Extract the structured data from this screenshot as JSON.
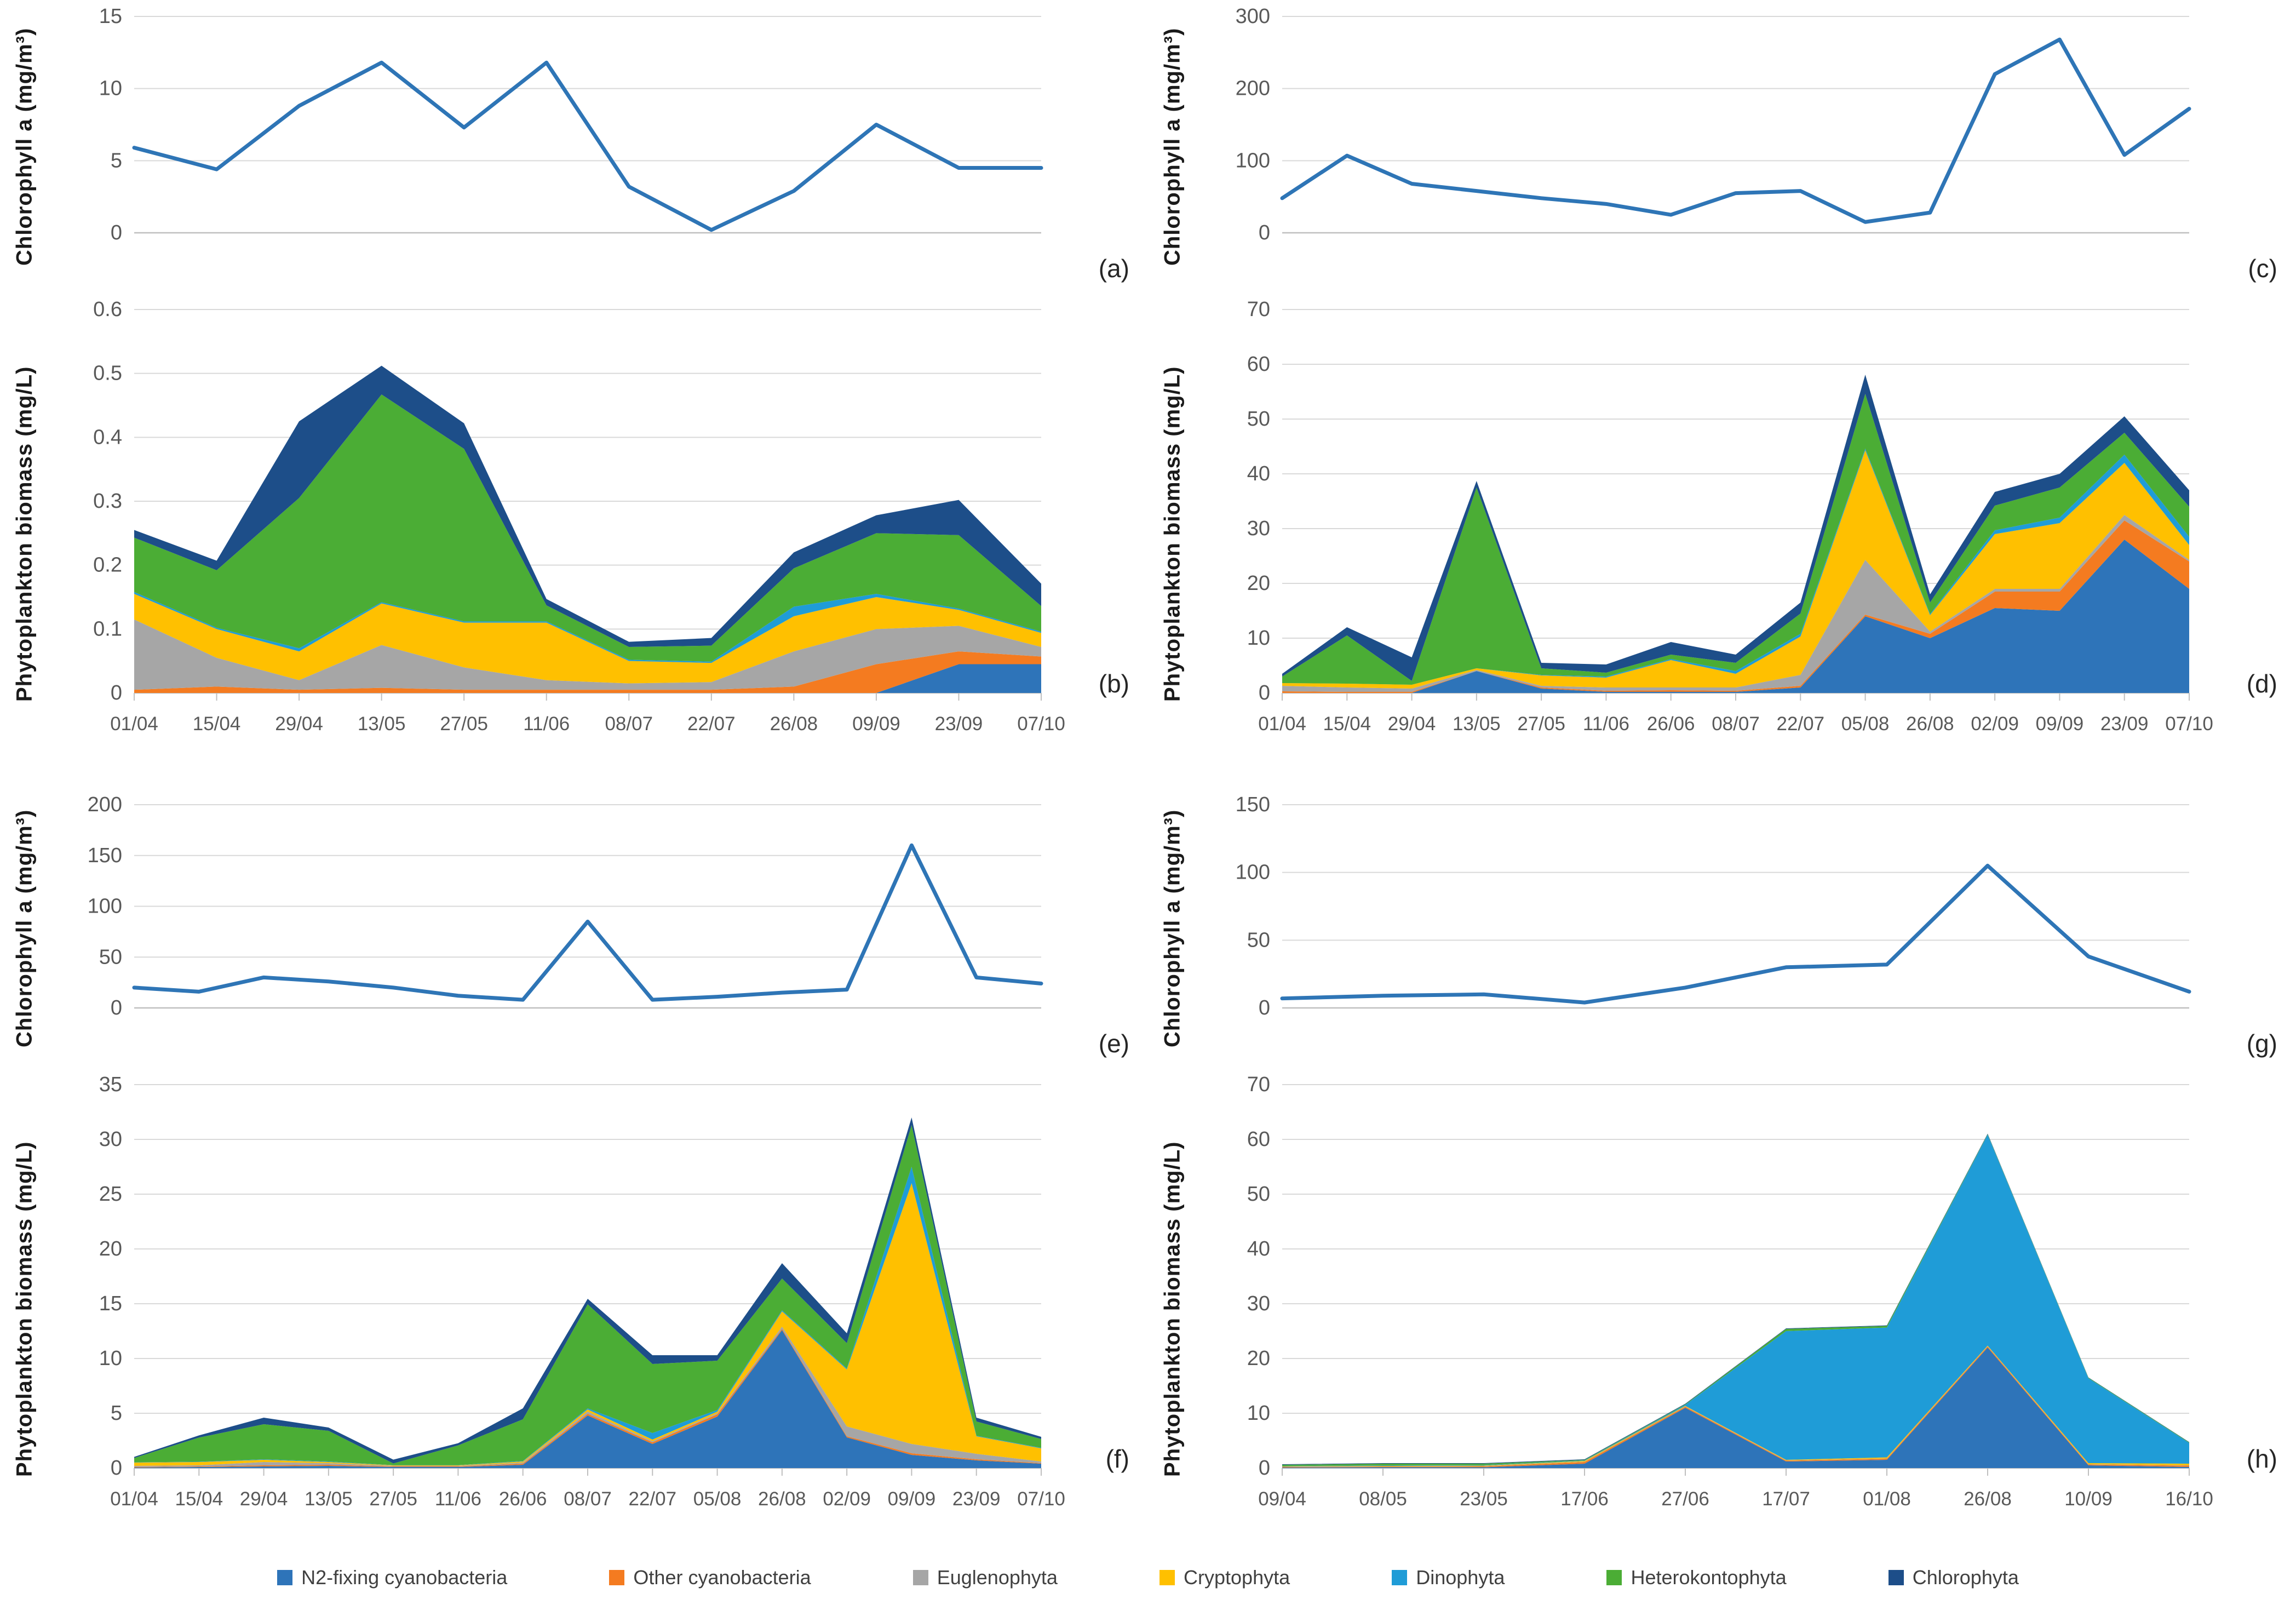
{
  "legend": {
    "items": [
      {
        "label": "N2-fixing cyanobacteria",
        "color": "#2E74B9"
      },
      {
        "label": "Other cyanobacteria",
        "color": "#F47B20"
      },
      {
        "label": "Euglenophyta",
        "color": "#A6A6A6"
      },
      {
        "label": "Cryptophyta",
        "color": "#FFC000"
      },
      {
        "label": "Dinophyta",
        "color": "#1F9CD7"
      },
      {
        "label": "Heterokontophyta",
        "color": "#4BAD35"
      },
      {
        "label": "Chlorophyta",
        "color": "#1D4E89"
      }
    ]
  },
  "chart_data": [
    {
      "letter": "(a)",
      "type": "line",
      "ylabel": "Chlorophyll a (mg/m³)",
      "ymax": 15,
      "yticks": [
        "0",
        "5",
        "10",
        "15"
      ],
      "show_x_labels": false,
      "line_color": "#2E75B6",
      "categories": [
        "01/04",
        "15/04",
        "29/04",
        "13/05",
        "27/05",
        "11/06",
        "08/07",
        "22/07",
        "26/08",
        "09/09",
        "23/09",
        "07/10"
      ],
      "values": [
        5.9,
        4.4,
        8.8,
        11.8,
        7.3,
        11.8,
        3.2,
        0.2,
        2.9,
        7.5,
        4.5,
        4.5
      ]
    },
    {
      "letter": "(c)",
      "type": "line",
      "ylabel": "Chlorophyll a (mg/m³)",
      "ymax": 300,
      "yticks": [
        "0",
        "100",
        "200",
        "300"
      ],
      "show_x_labels": false,
      "line_color": "#2E75B6",
      "categories": [
        "01/04",
        "15/04",
        "29/04",
        "13/05",
        "27/05",
        "11/06",
        "26/06",
        "08/07",
        "22/07",
        "05/08",
        "26/08",
        "02/09",
        "09/09",
        "23/09",
        "07/10"
      ],
      "values": [
        48,
        107,
        68,
        58,
        48,
        40,
        25,
        55,
        58,
        15,
        28,
        220,
        268,
        108,
        172
      ]
    },
    {
      "letter": "(b)",
      "type": "area",
      "ylabel": "Phytoplankton biomass (mg/L)",
      "ymax": 0.6,
      "yticks": [
        "0",
        "0.1",
        "0.2",
        "0.3",
        "0.4",
        "0.5",
        "0.6"
      ],
      "show_x_labels": true,
      "categories": [
        "01/04",
        "15/04",
        "29/04",
        "13/05",
        "27/05",
        "11/06",
        "08/07",
        "22/07",
        "26/08",
        "09/09",
        "23/09",
        "07/10"
      ],
      "series": [
        {
          "label": "N2-fixing cyanobacteria",
          "values": [
            0,
            0,
            0,
            0,
            0,
            0,
            0,
            0,
            0,
            0,
            0.045,
            0.045
          ]
        },
        {
          "label": "Other cyanobacteria",
          "values": [
            0.005,
            0.01,
            0.005,
            0.008,
            0.005,
            0.005,
            0.005,
            0.005,
            0.01,
            0.045,
            0.02,
            0.012
          ]
        },
        {
          "label": "Euglenophyta",
          "values": [
            0.11,
            0.045,
            0.015,
            0.067,
            0.035,
            0.015,
            0.01,
            0.012,
            0.055,
            0.055,
            0.04,
            0.015
          ]
        },
        {
          "label": "Cryptophyta",
          "values": [
            0.04,
            0.045,
            0.045,
            0.065,
            0.07,
            0.09,
            0.035,
            0.03,
            0.055,
            0.05,
            0.025,
            0.022
          ]
        },
        {
          "label": "Dinophyta",
          "values": [
            0.003,
            0.002,
            0.005,
            0.002,
            0.002,
            0.002,
            0.002,
            0.002,
            0.015,
            0.005,
            0.002,
            0.002
          ]
        },
        {
          "label": "Heterokontophyta",
          "values": [
            0.085,
            0.09,
            0.235,
            0.325,
            0.27,
            0.025,
            0.02,
            0.025,
            0.06,
            0.095,
            0.115,
            0.04
          ]
        },
        {
          "label": "Chlorophyta",
          "values": [
            0.012,
            0.015,
            0.12,
            0.045,
            0.04,
            0.01,
            0.008,
            0.012,
            0.025,
            0.028,
            0.055,
            0.035
          ]
        }
      ]
    },
    {
      "letter": "(d)",
      "type": "area",
      "ylabel": "Phytoplankton biomass (mg/L)",
      "ymax": 70,
      "yticks": [
        "0",
        "10",
        "20",
        "30",
        "40",
        "50",
        "60",
        "70"
      ],
      "show_x_labels": true,
      "categories": [
        "01/04",
        "15/04",
        "29/04",
        "13/05",
        "27/05",
        "11/06",
        "26/06",
        "08/07",
        "22/07",
        "05/08",
        "26/08",
        "02/09",
        "09/09",
        "23/09",
        "07/10"
      ],
      "series": [
        {
          "label": "N2-fixing cyanobacteria",
          "values": [
            0,
            0,
            0,
            4,
            0.8,
            0.2,
            0.2,
            0.2,
            1,
            14,
            10,
            15.5,
            15,
            28,
            19
          ]
        },
        {
          "label": "Other cyanobacteria",
          "values": [
            0.3,
            0.2,
            0.2,
            0,
            0.2,
            0.2,
            0.3,
            0.2,
            0.3,
            0.3,
            0.8,
            3,
            3.5,
            3.5,
            5
          ]
        },
        {
          "label": "Euglenophyta",
          "values": [
            1,
            0.8,
            0.6,
            0.2,
            0.3,
            0.6,
            0.5,
            0.6,
            2,
            10,
            0.4,
            0.5,
            0.5,
            1,
            0.3
          ]
        },
        {
          "label": "Cryptophyta",
          "values": [
            0.5,
            0.7,
            0.7,
            0.3,
            1.9,
            1.8,
            5,
            2.5,
            7,
            20,
            3,
            10,
            12,
            9.5,
            2.7
          ]
        },
        {
          "label": "Dinophyta",
          "values": [
            0,
            0,
            0,
            0,
            0.1,
            0.2,
            0.2,
            0.5,
            0.5,
            0.3,
            0.2,
            0.7,
            1,
            1.5,
            1.5
          ]
        },
        {
          "label": "Heterokontophyta",
          "values": [
            1.2,
            8.8,
            0.7,
            33,
            1.2,
            0.7,
            0.8,
            1.5,
            3.7,
            10,
            2.1,
            4.5,
            5.5,
            4,
            5.5
          ]
        },
        {
          "label": "Chlorophyta",
          "values": [
            0.5,
            1.5,
            4.3,
            1.2,
            1,
            1.5,
            2.3,
            1.5,
            2,
            3.5,
            1.5,
            2.5,
            2.5,
            3,
            3
          ]
        }
      ]
    },
    {
      "letter": "(e)",
      "type": "line",
      "ylabel": "Chlorophyll a (mg/m³)",
      "ymax": 200,
      "yticks": [
        "0",
        "50",
        "100",
        "150",
        "200"
      ],
      "show_x_labels": false,
      "line_color": "#2E75B6",
      "categories": [
        "01/04",
        "15/04",
        "29/04",
        "13/05",
        "27/05",
        "11/06",
        "26/06",
        "08/07",
        "22/07",
        "05/08",
        "26/08",
        "02/09",
        "09/09",
        "23/09",
        "07/10"
      ],
      "values": [
        20,
        16,
        30,
        26,
        20,
        12,
        8,
        85,
        8,
        11,
        15,
        18,
        160,
        30,
        24
      ]
    },
    {
      "letter": "(g)",
      "type": "line",
      "ylabel": "Chlorophyll a (mg/m³)",
      "ymax": 150,
      "yticks": [
        "0",
        "50",
        "100",
        "150"
      ],
      "show_x_labels": false,
      "line_color": "#2E75B6",
      "categories": [
        "09/04",
        "08/05",
        "23/05",
        "17/06",
        "27/06",
        "17/07",
        "01/08",
        "26/08",
        "10/09",
        "16/10"
      ],
      "values": [
        7,
        9,
        10,
        4,
        15,
        30,
        32,
        105,
        38,
        12
      ]
    },
    {
      "letter": "(f)",
      "type": "area",
      "ylabel": "Phytoplankton biomass (mg/L)",
      "ymax": 35,
      "yticks": [
        "0",
        "5",
        "10",
        "15",
        "20",
        "25",
        "30",
        "35"
      ],
      "show_x_labels": true,
      "categories": [
        "01/04",
        "15/04",
        "29/04",
        "13/05",
        "27/05",
        "11/06",
        "26/06",
        "08/07",
        "22/07",
        "05/08",
        "26/08",
        "02/09",
        "09/09",
        "23/09",
        "07/10"
      ],
      "series": [
        {
          "label": "N2-fixing cyanobacteria",
          "values": [
            0.05,
            0.1,
            0.15,
            0.2,
            0.1,
            0.1,
            0.3,
            4.8,
            2.2,
            4.7,
            12.6,
            2.8,
            1.2,
            0.7,
            0.4
          ]
        },
        {
          "label": "Other cyanobacteria",
          "values": [
            0.05,
            0.05,
            0.1,
            0.1,
            0.05,
            0.05,
            0.1,
            0.15,
            0.15,
            0.2,
            0.1,
            0.1,
            0.15,
            0.1,
            0.05
          ]
        },
        {
          "label": "Euglenophyta",
          "values": [
            0.1,
            0.1,
            0.3,
            0.15,
            0.05,
            0.05,
            0.1,
            0.2,
            0.1,
            0.1,
            0.2,
            0.9,
            0.85,
            0.5,
            0.15
          ]
        },
        {
          "label": "Cryptophyta",
          "values": [
            0.3,
            0.3,
            0.2,
            0.1,
            0.05,
            0.05,
            0.1,
            0.2,
            0.15,
            0.15,
            1.4,
            5.2,
            23.8,
            1.6,
            1.2
          ]
        },
        {
          "label": "Dinophyta",
          "values": [
            0.02,
            0.03,
            0.05,
            0.05,
            0.02,
            0.02,
            0.05,
            0.1,
            0.6,
            0.15,
            0.1,
            0.1,
            1.5,
            0.05,
            0.05
          ]
        },
        {
          "label": "Heterokontophyta",
          "values": [
            0.4,
            2.2,
            3.2,
            2.8,
            0.15,
            1.8,
            3.8,
            9.5,
            6.3,
            4.5,
            2.9,
            2.3,
            3.8,
            1.3,
            0.8
          ]
        },
        {
          "label": "Chlorophyta",
          "values": [
            0.1,
            0.2,
            0.6,
            0.3,
            0.35,
            0.2,
            1.0,
            0.5,
            0.8,
            0.5,
            1.4,
            0.9,
            0.7,
            0.35,
            0.2
          ]
        }
      ]
    },
    {
      "letter": "(h)",
      "type": "area",
      "ylabel": "Phytoplankton biomass (mg/L)",
      "ymax": 70,
      "yticks": [
        "0",
        "10",
        "20",
        "30",
        "40",
        "50",
        "60",
        "70"
      ],
      "show_x_labels": true,
      "categories": [
        "09/04",
        "08/05",
        "23/05",
        "17/06",
        "27/06",
        "17/07",
        "01/08",
        "26/08",
        "10/09",
        "16/10"
      ],
      "series": [
        {
          "label": "N2-fixing cyanobacteria",
          "values": [
            0.1,
            0.15,
            0.15,
            0.8,
            11,
            1.2,
            1.5,
            22,
            0.5,
            0.2
          ]
        },
        {
          "label": "Other cyanobacteria",
          "values": [
            0.1,
            0.1,
            0.15,
            0.3,
            0.2,
            0.15,
            0.2,
            0.2,
            0.15,
            0.25
          ]
        },
        {
          "label": "Euglenophyta",
          "values": [
            0.05,
            0.05,
            0.05,
            0.05,
            0.05,
            0.05,
            0.05,
            0.05,
            0.05,
            0.05
          ]
        },
        {
          "label": "Cryptophyta",
          "values": [
            0.05,
            0.1,
            0.1,
            0.15,
            0.1,
            0.1,
            0.2,
            0.1,
            0.2,
            0.3
          ]
        },
        {
          "label": "Dinophyta",
          "values": [
            0.05,
            0.1,
            0.1,
            0.1,
            0.2,
            23.5,
            23.7,
            38.5,
            15.5,
            3.8
          ]
        },
        {
          "label": "Heterokontophyta",
          "values": [
            0.25,
            0.3,
            0.25,
            0.1,
            0.1,
            0.4,
            0.3,
            0.1,
            0.1,
            0.1
          ]
        },
        {
          "label": "Chlorophyta",
          "values": [
            0.1,
            0.1,
            0.1,
            0.1,
            0.1,
            0.1,
            0.1,
            0.1,
            0.05,
            0.05
          ]
        }
      ]
    }
  ]
}
